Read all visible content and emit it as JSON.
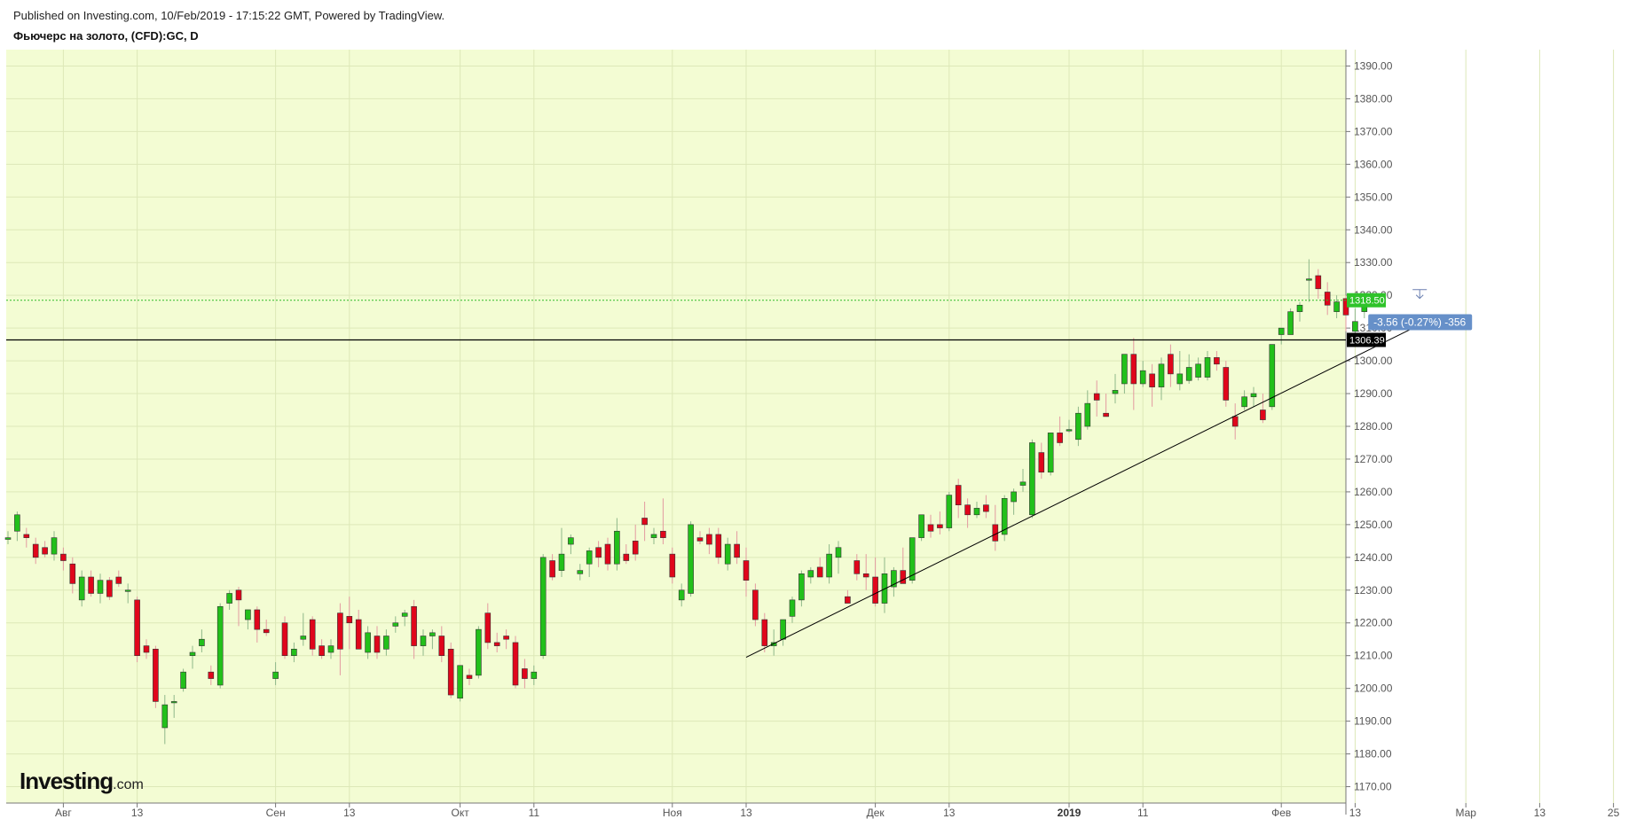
{
  "header": {
    "published": "Published on Investing.com, 10/Feb/2019 - 17:15:22 GMT, Powered by TradingView.",
    "instrument": "Фьючерс на золото, (CFD):GC, D"
  },
  "logo": {
    "main": "Investing",
    "suffix": ".com"
  },
  "colors": {
    "background": "#f3fcd3",
    "up": "#22c01a",
    "down": "#e0061b",
    "price_line": "#2fb92b",
    "price_badge": "#2fc32a",
    "level_line": "#000000",
    "annotation_bg": "#6690c9"
  },
  "chart_data": {
    "type": "candlestick",
    "title": "Фьючерс на золото, (CFD):GC, D",
    "ylim": [
      1165,
      1395
    ],
    "y_ticks": [
      "1390.00",
      "1380.00",
      "1370.00",
      "1360.00",
      "1350.00",
      "1340.00",
      "1330.00",
      "1320.00",
      "1310.00",
      "1300.00",
      "1290.00",
      "1280.00",
      "1270.00",
      "1260.00",
      "1250.00",
      "1240.00",
      "1230.00",
      "1220.00",
      "1210.00",
      "1200.00",
      "1190.00",
      "1180.00",
      "1170.00"
    ],
    "x_ticks": [
      {
        "label": "Авг",
        "bar": 6,
        "bold": false
      },
      {
        "label": "13",
        "bar": 14,
        "bold": false
      },
      {
        "label": "Сен",
        "bar": 29,
        "bold": false
      },
      {
        "label": "13",
        "bar": 37,
        "bold": false
      },
      {
        "label": "Окт",
        "bar": 49,
        "bold": false
      },
      {
        "label": "11",
        "bar": 57,
        "bold": false
      },
      {
        "label": "Ноя",
        "bar": 72,
        "bold": false
      },
      {
        "label": "13",
        "bar": 80,
        "bold": false
      },
      {
        "label": "Дек",
        "bar": 94,
        "bold": false
      },
      {
        "label": "13",
        "bar": 102,
        "bold": false
      },
      {
        "label": "2019",
        "bar": 115,
        "bold": true
      },
      {
        "label": "11",
        "bar": 123,
        "bold": false
      },
      {
        "label": "Фев",
        "bar": 138,
        "bold": false
      },
      {
        "label": "13",
        "bar": 146,
        "bold": false
      },
      {
        "label": "Мар",
        "bar": 158,
        "bold": false
      },
      {
        "label": "13",
        "bar": 166,
        "bold": false
      },
      {
        "label": "25",
        "bar": 174,
        "bold": false
      }
    ],
    "candles": [
      [
        1245.5,
        1248,
        1244,
        1246
      ],
      [
        1248,
        1254,
        1245,
        1253
      ],
      [
        1247,
        1249,
        1243,
        1246
      ],
      [
        1244,
        1246,
        1238,
        1240
      ],
      [
        1243,
        1245,
        1240,
        1241
      ],
      [
        1241,
        1248,
        1239,
        1246
      ],
      [
        1241,
        1243,
        1236,
        1239
      ],
      [
        1238,
        1240,
        1229,
        1232
      ],
      [
        1227,
        1236,
        1225,
        1234
      ],
      [
        1234,
        1236,
        1228,
        1229
      ],
      [
        1229,
        1235,
        1226,
        1233
      ],
      [
        1233,
        1234,
        1227,
        1228
      ],
      [
        1234,
        1236,
        1231,
        1232
      ],
      [
        1230,
        1232,
        1226,
        1230
      ],
      [
        1227,
        1228,
        1208,
        1210
      ],
      [
        1213,
        1215,
        1209,
        1211
      ],
      [
        1212,
        1213,
        1194,
        1196
      ],
      [
        1188,
        1198,
        1183,
        1195
      ],
      [
        1196,
        1198,
        1191,
        1196
      ],
      [
        1200,
        1206,
        1199,
        1205
      ],
      [
        1210,
        1213,
        1206,
        1211
      ],
      [
        1213,
        1218,
        1211,
        1215
      ],
      [
        1205,
        1207,
        1201,
        1203
      ],
      [
        1201,
        1226,
        1200,
        1225
      ],
      [
        1226,
        1230,
        1224,
        1229
      ],
      [
        1230,
        1231,
        1219,
        1227
      ],
      [
        1221,
        1224,
        1218,
        1224
      ],
      [
        1224,
        1225,
        1214,
        1218
      ],
      [
        1218,
        1221,
        1216,
        1217
      ],
      [
        1203,
        1208,
        1201,
        1205
      ],
      [
        1220,
        1222,
        1209,
        1210
      ],
      [
        1210,
        1214,
        1208,
        1212
      ],
      [
        1215,
        1223,
        1213,
        1216
      ],
      [
        1221,
        1222,
        1210,
        1212
      ],
      [
        1213,
        1215,
        1209,
        1210
      ],
      [
        1211,
        1215,
        1209,
        1213
      ],
      [
        1223,
        1226,
        1204,
        1212
      ],
      [
        1222,
        1228,
        1212,
        1220
      ],
      [
        1221,
        1224,
        1212,
        1212
      ],
      [
        1211,
        1219,
        1209,
        1217
      ],
      [
        1216,
        1219,
        1209,
        1211
      ],
      [
        1212,
        1218,
        1210,
        1216
      ],
      [
        1219,
        1222,
        1217,
        1220
      ],
      [
        1222,
        1224,
        1219,
        1223
      ],
      [
        1225,
        1227,
        1209,
        1213
      ],
      [
        1213,
        1218,
        1210,
        1216
      ],
      [
        1216,
        1218,
        1212,
        1217
      ],
      [
        1216,
        1219,
        1208,
        1210
      ],
      [
        1212,
        1214,
        1197,
        1198
      ],
      [
        1197,
        1207,
        1196,
        1207
      ],
      [
        1204,
        1206,
        1201,
        1203
      ],
      [
        1204,
        1219,
        1203,
        1218
      ],
      [
        1223,
        1226,
        1212,
        1214
      ],
      [
        1214,
        1217,
        1211,
        1213
      ],
      [
        1216,
        1218,
        1212,
        1215
      ],
      [
        1214,
        1216,
        1200,
        1201
      ],
      [
        1206,
        1209,
        1200,
        1203
      ],
      [
        1203,
        1207,
        1201,
        1205
      ],
      [
        1210,
        1241,
        1209,
        1240
      ],
      [
        1239,
        1241,
        1233,
        1234
      ],
      [
        1236,
        1249,
        1234,
        1241
      ],
      [
        1244,
        1247,
        1241,
        1246
      ],
      [
        1235,
        1238,
        1233,
        1236
      ],
      [
        1238,
        1243,
        1234,
        1242
      ],
      [
        1243,
        1245,
        1237,
        1240
      ],
      [
        1244,
        1246,
        1236,
        1238
      ],
      [
        1238,
        1252,
        1236,
        1248
      ],
      [
        1241,
        1244,
        1238,
        1239
      ],
      [
        1245,
        1250,
        1239,
        1241
      ],
      [
        1252,
        1257,
        1245,
        1250
      ],
      [
        1246,
        1249,
        1244,
        1247
      ],
      [
        1248,
        1258,
        1244,
        1246
      ],
      [
        1241,
        1243,
        1232,
        1234
      ],
      [
        1227,
        1232,
        1225,
        1230
      ],
      [
        1229,
        1251,
        1228,
        1250
      ],
      [
        1246,
        1248,
        1244,
        1245
      ],
      [
        1247,
        1249,
        1241,
        1244
      ],
      [
        1247,
        1249,
        1238,
        1240
      ],
      [
        1238,
        1246,
        1236,
        1244
      ],
      [
        1244,
        1248,
        1238,
        1240
      ],
      [
        1239,
        1243,
        1228,
        1233
      ],
      [
        1230,
        1232,
        1219,
        1221
      ],
      [
        1221,
        1223,
        1211,
        1213
      ],
      [
        1213,
        1218,
        1210,
        1214
      ],
      [
        1215,
        1221,
        1213,
        1221
      ],
      [
        1222,
        1228,
        1220,
        1227
      ],
      [
        1227,
        1236,
        1225,
        1235
      ],
      [
        1234,
        1237,
        1232,
        1236
      ],
      [
        1237,
        1240,
        1234,
        1234
      ],
      [
        1234,
        1244,
        1232,
        1241
      ],
      [
        1240,
        1245,
        1235,
        1243
      ],
      [
        1228,
        1230,
        1226,
        1226
      ],
      [
        1239,
        1241,
        1233,
        1235
      ],
      [
        1235,
        1241,
        1230,
        1234
      ],
      [
        1234,
        1240,
        1225,
        1226
      ],
      [
        1226,
        1240,
        1223,
        1235
      ],
      [
        1231,
        1237,
        1228,
        1236
      ],
      [
        1236,
        1243,
        1233,
        1232
      ],
      [
        1233,
        1245,
        1232,
        1246
      ],
      [
        1246,
        1253,
        1245,
        1253
      ],
      [
        1250,
        1253,
        1246,
        1248
      ],
      [
        1250,
        1254,
        1247,
        1249
      ],
      [
        1249,
        1260,
        1248,
        1259
      ],
      [
        1262,
        1264,
        1252,
        1256
      ],
      [
        1256,
        1258,
        1249,
        1253
      ],
      [
        1253,
        1257,
        1252,
        1255
      ],
      [
        1256,
        1259,
        1252,
        1254
      ],
      [
        1250,
        1256,
        1242,
        1245
      ],
      [
        1247,
        1259,
        1245,
        1258
      ],
      [
        1257,
        1261,
        1253,
        1260
      ],
      [
        1262,
        1267,
        1260,
        1263
      ],
      [
        1253,
        1276,
        1252,
        1275
      ],
      [
        1272,
        1275,
        1264,
        1266
      ],
      [
        1266,
        1278,
        1265,
        1278
      ],
      [
        1278,
        1283,
        1274,
        1275
      ],
      [
        1279,
        1282,
        1278,
        1279
      ],
      [
        1276,
        1286,
        1274,
        1284
      ],
      [
        1280,
        1291,
        1279,
        1287
      ],
      [
        1290,
        1294,
        1283,
        1288
      ],
      [
        1284,
        1290,
        1283,
        1283
      ],
      [
        1290,
        1296,
        1287,
        1291
      ],
      [
        1293,
        1302,
        1290,
        1302
      ],
      [
        1302,
        1307,
        1285,
        1293
      ],
      [
        1293,
        1300,
        1292,
        1297
      ],
      [
        1296,
        1299,
        1286,
        1292
      ],
      [
        1292,
        1301,
        1288,
        1299
      ],
      [
        1302,
        1305,
        1292,
        1296
      ],
      [
        1293,
        1303,
        1291,
        1296
      ],
      [
        1294,
        1302,
        1293,
        1298
      ],
      [
        1295,
        1301,
        1294,
        1299
      ],
      [
        1295,
        1303,
        1294,
        1301
      ],
      [
        1301,
        1303,
        1297,
        1299
      ],
      [
        1298,
        1300,
        1286,
        1288
      ],
      [
        1283,
        1287,
        1276,
        1280
      ],
      [
        1286,
        1291,
        1285,
        1289
      ],
      [
        1289,
        1292,
        1286,
        1290
      ],
      [
        1285,
        1290,
        1281,
        1282
      ],
      [
        1286,
        1305,
        1285,
        1305
      ],
      [
        1308,
        1310,
        1305,
        1310
      ],
      [
        1308,
        1316,
        1308,
        1315
      ],
      [
        1315,
        1318,
        1312,
        1317
      ],
      [
        1325,
        1331,
        1318,
        1325
      ],
      [
        1326,
        1328,
        1319,
        1322
      ],
      [
        1321,
        1324,
        1314,
        1317
      ],
      [
        1315,
        1320,
        1313,
        1318
      ],
      [
        1319,
        1320,
        1309,
        1314
      ],
      [
        1309,
        1316,
        1307,
        1312
      ],
      [
        1315,
        1320,
        1313,
        1319
      ]
    ],
    "current_price": "1318.50",
    "level": {
      "value": 1306.39,
      "label": "1306.39"
    },
    "trendline": {
      "start": {
        "bar": 80,
        "price": 1209.5
      },
      "end": {
        "bar": 153,
        "price": 1311
      }
    },
    "annotation": {
      "text": "-3.56 (-0.27%) -356",
      "bar": 153
    },
    "grid": true,
    "axis_position": "right"
  }
}
